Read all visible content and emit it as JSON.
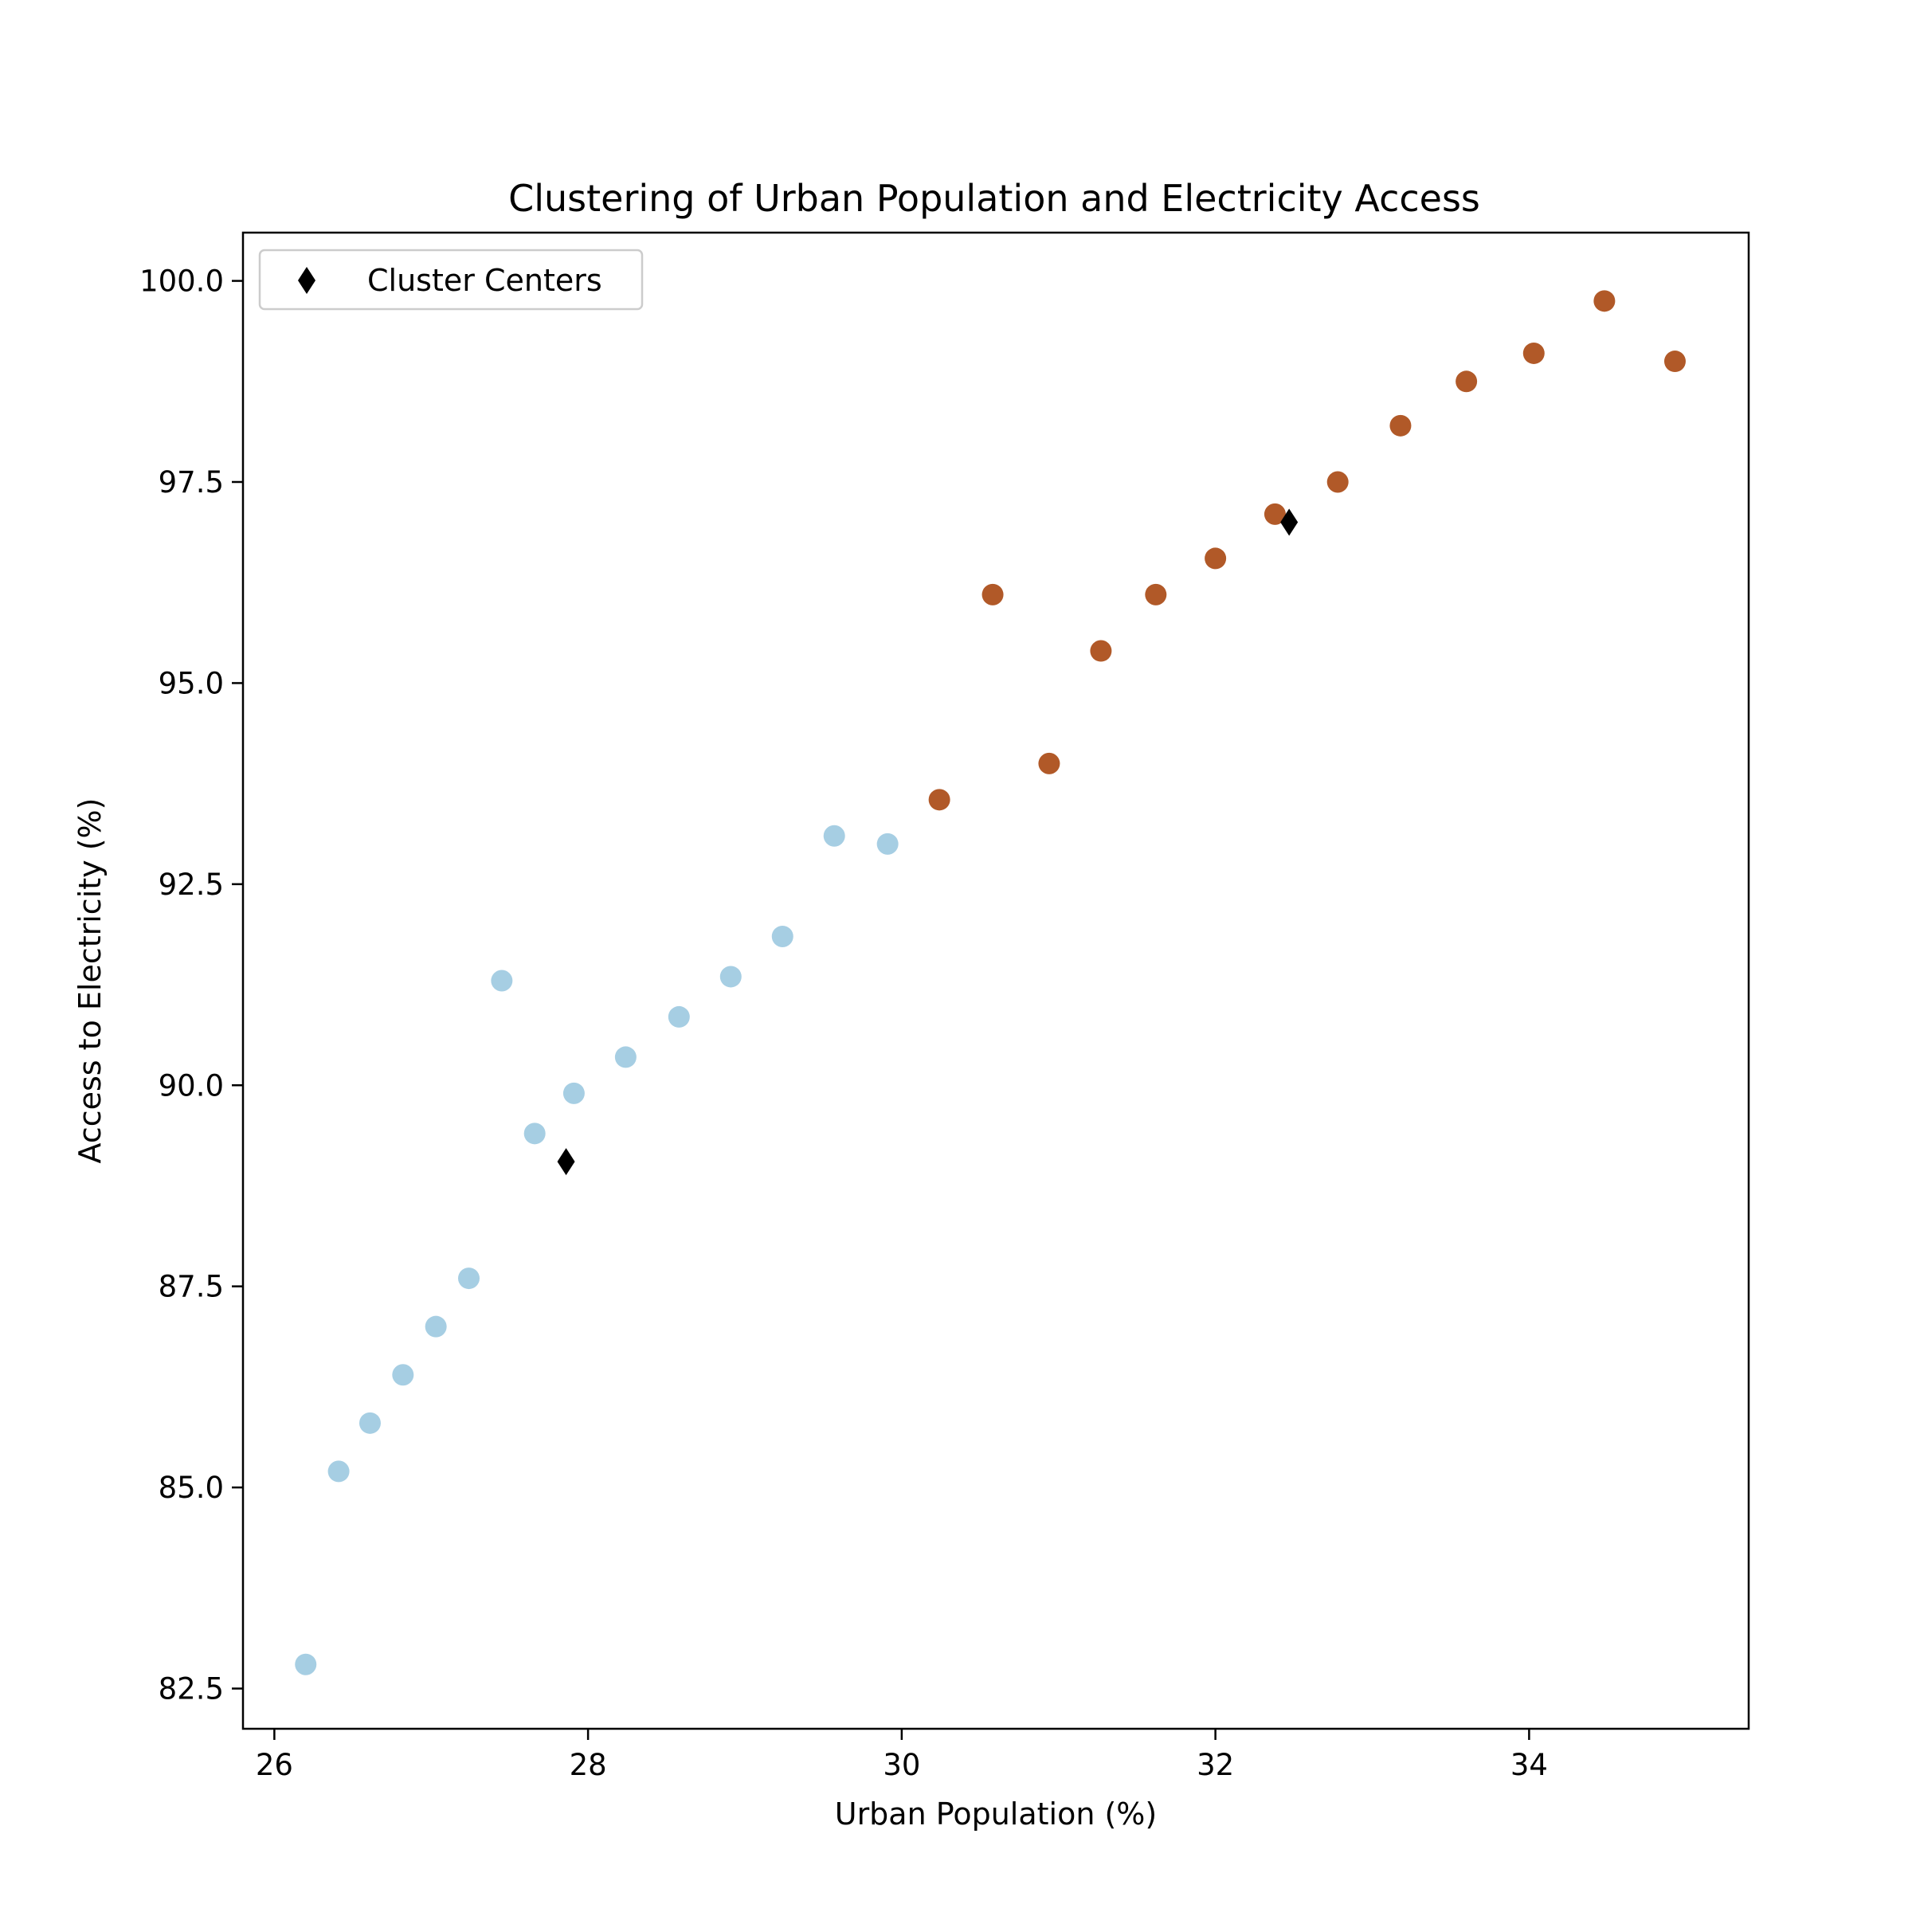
{
  "chart_data": {
    "type": "scatter",
    "title": "Clustering of Urban Population and Electricity Access",
    "xlabel": "Urban Population (%)",
    "ylabel": "Access to Electricity (%)",
    "xlim": [
      25.8,
      35.4
    ],
    "ylim": [
      82.0,
      100.6
    ],
    "x_ticks": [
      26,
      28,
      30,
      32,
      34
    ],
    "y_ticks": [
      82.5,
      85.0,
      87.5,
      90.0,
      92.5,
      95.0,
      97.5,
      100.0
    ],
    "y_tick_decimals": 1,
    "grid": false,
    "legend": {
      "placement": "top-left",
      "entries": [
        {
          "label": "Cluster Centers",
          "marker": "diamond",
          "color": "#000000"
        }
      ]
    },
    "clusters": [
      {
        "color": "#a6cee3",
        "points": [
          [
            26.2,
            82.8
          ],
          [
            26.41,
            85.2
          ],
          [
            26.61,
            85.8
          ],
          [
            26.82,
            86.4
          ],
          [
            27.03,
            87.0
          ],
          [
            27.24,
            87.6
          ],
          [
            27.45,
            91.3
          ],
          [
            27.66,
            89.4
          ],
          [
            27.91,
            89.9
          ],
          [
            28.24,
            90.35
          ],
          [
            28.58,
            90.85
          ],
          [
            28.91,
            91.35
          ],
          [
            29.24,
            91.85
          ],
          [
            29.57,
            93.1
          ],
          [
            29.91,
            93.0
          ]
        ]
      },
      {
        "color": "#b15928",
        "points": [
          [
            30.24,
            93.55
          ],
          [
            30.58,
            96.1
          ],
          [
            30.94,
            94.0
          ],
          [
            31.27,
            95.4
          ],
          [
            31.62,
            96.1
          ],
          [
            32.0,
            96.55
          ],
          [
            32.38,
            97.1
          ],
          [
            32.78,
            97.5
          ],
          [
            33.18,
            98.2
          ],
          [
            33.6,
            98.75
          ],
          [
            34.03,
            99.1
          ],
          [
            34.48,
            99.75
          ],
          [
            34.93,
            99.0
          ]
        ]
      }
    ],
    "centers": [
      [
        27.86,
        89.05
      ],
      [
        32.47,
        97.0
      ]
    ],
    "center_color": "#000000"
  }
}
